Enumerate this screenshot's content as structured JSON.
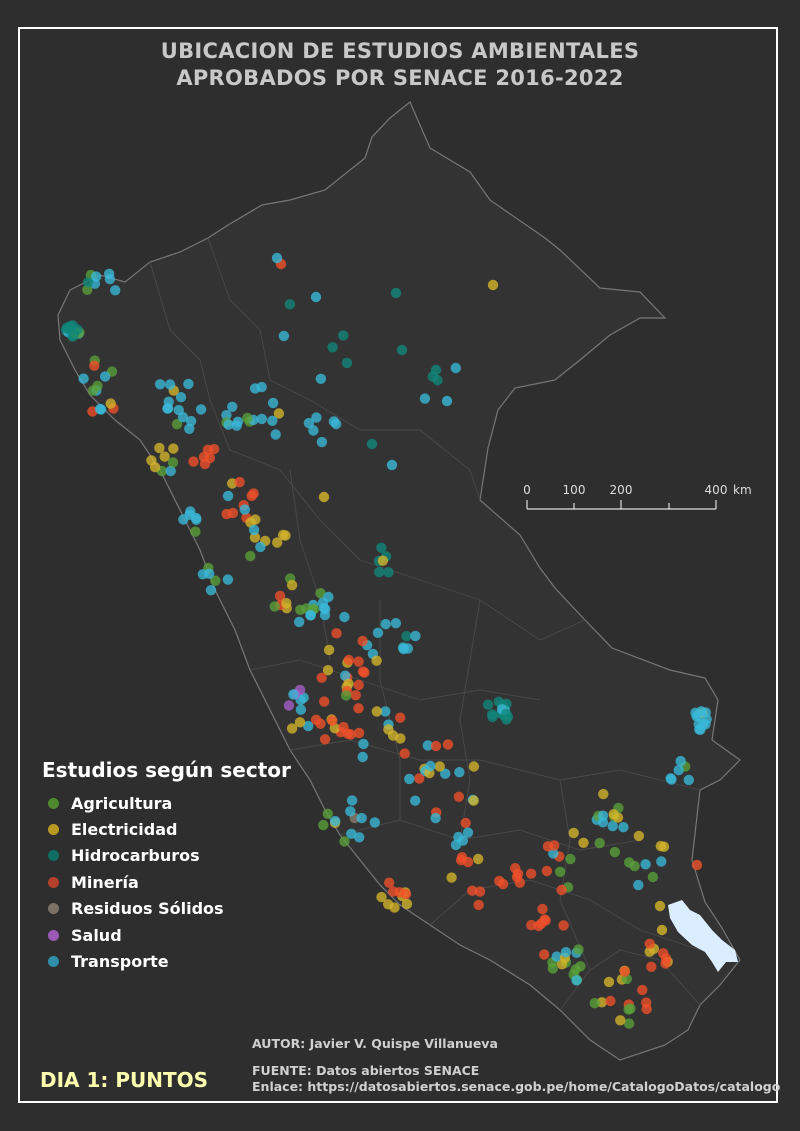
{
  "title_lines": [
    "UBICACION DE ESTUDIOS AMBIENTALES",
    "APROBADOS POR SENACE 2016-2022"
  ],
  "legend": {
    "title": "Estudios según sector",
    "items": [
      {
        "label": "Agricultura",
        "color": "#4f8a2f"
      },
      {
        "label": "Electricidad",
        "color": "#b89a22"
      },
      {
        "label": "Hidrocarburos",
        "color": "#0f6e63"
      },
      {
        "label": "Minería",
        "color": "#b5402a"
      },
      {
        "label": "Residuos Sólidos",
        "color": "#7e7268"
      },
      {
        "label": "Salud",
        "color": "#9b59b6"
      },
      {
        "label": "Transporte",
        "color": "#2f8fa8"
      }
    ]
  },
  "scale": {
    "labels": [
      "0",
      "100",
      "200",
      "400"
    ],
    "unit": "km"
  },
  "credits": {
    "author": "AUTOR: Javier V. Quispe Villanueva",
    "source": "FUENTE: Datos abiertos SENACE",
    "link": "Enlace: https://datosabiertos.senace.gob.pe/home/CatalogoDatos/catalogo"
  },
  "day_label": "DIA 1: PUNTOS",
  "colors": {
    "background": "#2e2e2e",
    "country_fill": "#333333",
    "border": "#777777",
    "lake": "#dbeeff",
    "bright": {
      "Agricultura": "#5aa03a",
      "Electricidad": "#d4b52a",
      "Hidrocarburos": "#11877a",
      "Minería": "#f0502a",
      "Residuos Sólidos": "#8a7d70",
      "Salud": "#a860cc",
      "Transporte": "#3ab8d8"
    }
  }
}
